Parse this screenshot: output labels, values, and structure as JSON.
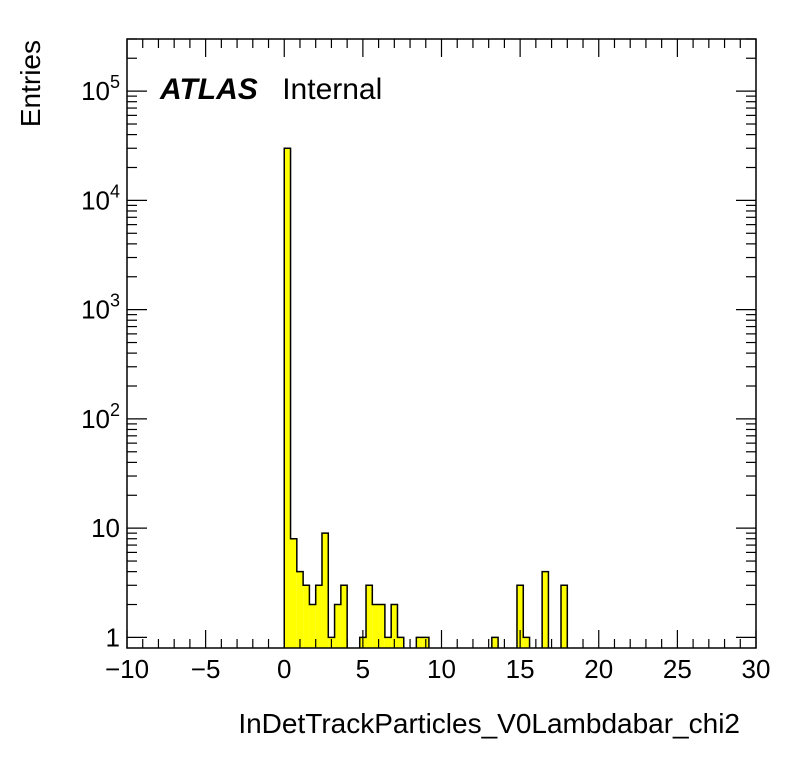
{
  "chart_data": {
    "type": "histogram",
    "xlabel": "InDetTrackParticles_V0Lambdabar_chi2",
    "ylabel": "Entries",
    "label_bold": "ATLAS",
    "label_text": "Internal",
    "xlim": [
      -10,
      30
    ],
    "ylim": [
      0.8,
      300000
    ],
    "yscale": "log",
    "fill_color": "#ffff00",
    "line_color": "#000000",
    "x_ticks": [
      -10,
      -5,
      0,
      5,
      10,
      15,
      20,
      25,
      30
    ],
    "x_tick_labels": [
      "−10",
      "−5",
      "0",
      "5",
      "10",
      "15",
      "20",
      "25",
      "30"
    ],
    "y_ticks": [
      {
        "value": 1,
        "base": "1",
        "exp": ""
      },
      {
        "value": 10,
        "base": "10",
        "exp": ""
      },
      {
        "value": 100,
        "base": "10",
        "exp": "2"
      },
      {
        "value": 1000,
        "base": "10",
        "exp": "3"
      },
      {
        "value": 10000,
        "base": "10",
        "exp": "4"
      },
      {
        "value": 100000,
        "base": "10",
        "exp": "5"
      }
    ],
    "bins": [
      {
        "x0": 0.0,
        "x1": 0.4,
        "y": 30000
      },
      {
        "x0": 0.4,
        "x1": 0.8,
        "y": 8
      },
      {
        "x0": 0.8,
        "x1": 1.2,
        "y": 4
      },
      {
        "x0": 1.2,
        "x1": 1.6,
        "y": 3
      },
      {
        "x0": 1.6,
        "x1": 2.0,
        "y": 2
      },
      {
        "x0": 2.0,
        "x1": 2.4,
        "y": 3
      },
      {
        "x0": 2.4,
        "x1": 2.8,
        "y": 9
      },
      {
        "x0": 2.8,
        "x1": 3.2,
        "y": 1
      },
      {
        "x0": 3.2,
        "x1": 3.6,
        "y": 2
      },
      {
        "x0": 3.6,
        "x1": 4.0,
        "y": 3
      },
      {
        "x0": 4.8,
        "x1": 5.2,
        "y": 1
      },
      {
        "x0": 5.2,
        "x1": 5.6,
        "y": 3
      },
      {
        "x0": 5.6,
        "x1": 6.0,
        "y": 2
      },
      {
        "x0": 6.0,
        "x1": 6.4,
        "y": 2
      },
      {
        "x0": 6.4,
        "x1": 6.8,
        "y": 1
      },
      {
        "x0": 6.8,
        "x1": 7.2,
        "y": 2
      },
      {
        "x0": 7.2,
        "x1": 7.6,
        "y": 1
      },
      {
        "x0": 8.4,
        "x1": 8.8,
        "y": 1
      },
      {
        "x0": 8.8,
        "x1": 9.2,
        "y": 1
      },
      {
        "x0": 13.2,
        "x1": 13.6,
        "y": 1
      },
      {
        "x0": 14.8,
        "x1": 15.2,
        "y": 3
      },
      {
        "x0": 15.2,
        "x1": 15.6,
        "y": 1
      },
      {
        "x0": 16.4,
        "x1": 16.8,
        "y": 4
      },
      {
        "x0": 17.6,
        "x1": 18.0,
        "y": 3
      }
    ]
  }
}
